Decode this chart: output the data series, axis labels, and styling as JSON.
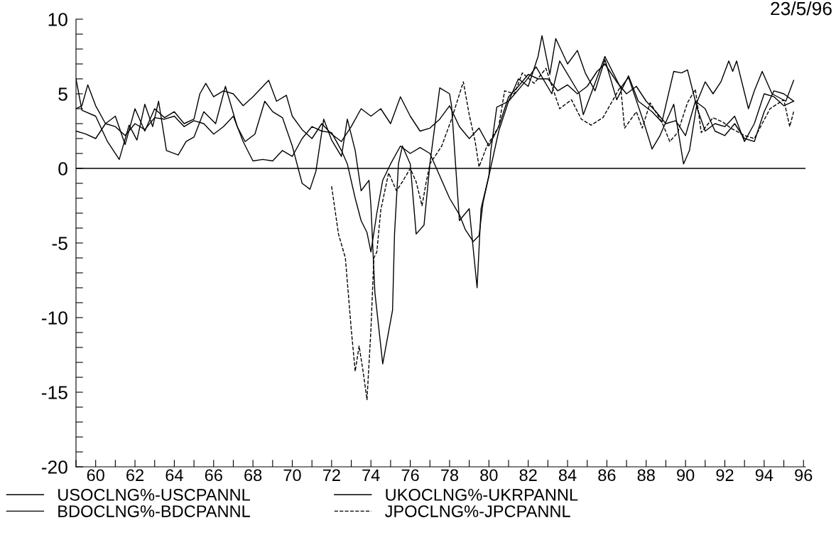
{
  "chart_data": {
    "type": "line",
    "xlim": [
      1959,
      1996.1
    ],
    "ylim": [
      -20,
      10
    ],
    "xticks": [
      {
        "value": 1959,
        "label": null
      },
      {
        "value": 1960,
        "label": "60"
      },
      {
        "value": 1961,
        "label": null
      },
      {
        "value": 1962,
        "label": "62"
      },
      {
        "value": 1963,
        "label": null
      },
      {
        "value": 1964,
        "label": "64"
      },
      {
        "value": 1965,
        "label": null
      },
      {
        "value": 1966,
        "label": "66"
      },
      {
        "value": 1967,
        "label": null
      },
      {
        "value": 1968,
        "label": "68"
      },
      {
        "value": 1969,
        "label": null
      },
      {
        "value": 1970,
        "label": "70"
      },
      {
        "value": 1971,
        "label": null
      },
      {
        "value": 1972,
        "label": "72"
      },
      {
        "value": 1973,
        "label": null
      },
      {
        "value": 1974,
        "label": "74"
      },
      {
        "value": 1975,
        "label": null
      },
      {
        "value": 1976,
        "label": "76"
      },
      {
        "value": 1977,
        "label": null
      },
      {
        "value": 1978,
        "label": "78"
      },
      {
        "value": 1979,
        "label": null
      },
      {
        "value": 1980,
        "label": "80"
      },
      {
        "value": 1981,
        "label": null
      },
      {
        "value": 1982,
        "label": "82"
      },
      {
        "value": 1983,
        "label": null
      },
      {
        "value": 1984,
        "label": "84"
      },
      {
        "value": 1985,
        "label": null
      },
      {
        "value": 1986,
        "label": "86"
      },
      {
        "value": 1987,
        "label": null
      },
      {
        "value": 1988,
        "label": "88"
      },
      {
        "value": 1989,
        "label": null
      },
      {
        "value": 1990,
        "label": "90"
      },
      {
        "value": 1991,
        "label": null
      },
      {
        "value": 1992,
        "label": "92"
      },
      {
        "value": 1993,
        "label": null
      },
      {
        "value": 1994,
        "label": "94"
      },
      {
        "value": 1995,
        "label": null
      },
      {
        "value": 1996,
        "label": "96"
      }
    ],
    "yticks": [
      -20,
      {
        "value": -19,
        "label": null
      },
      {
        "value": -18,
        "label": null
      },
      {
        "value": -17,
        "label": null
      },
      {
        "value": -16,
        "label": null
      },
      -15,
      {
        "value": -14,
        "label": null
      },
      {
        "value": -13,
        "label": null
      },
      {
        "value": -12,
        "label": null
      },
      {
        "value": -11,
        "label": null
      },
      -10,
      {
        "value": -9,
        "label": null
      },
      {
        "value": -8,
        "label": null
      },
      {
        "value": -7,
        "label": null
      },
      {
        "value": -6,
        "label": null
      },
      -5,
      {
        "value": -4,
        "label": null
      },
      {
        "value": -3,
        "label": null
      },
      {
        "value": -2,
        "label": null
      },
      {
        "value": -1,
        "label": null
      },
      0,
      {
        "value": 1,
        "label": null
      },
      {
        "value": 2,
        "label": null
      },
      {
        "value": 3,
        "label": null
      },
      {
        "value": 4,
        "label": null
      },
      5,
      {
        "value": 6,
        "label": null
      },
      {
        "value": 7,
        "label": null
      },
      {
        "value": 8,
        "label": null
      },
      {
        "value": 9,
        "label": null
      },
      10
    ],
    "grid": false,
    "legend": "bottom",
    "marker": "none",
    "ref_lines": [
      {
        "axis": "y",
        "value": 0,
        "color": "#000000"
      }
    ],
    "annotations": [
      "23/5/96"
    ],
    "series": [
      {
        "name": "USOCLNG%-USCPANNL",
        "color": "#000000",
        "line_style": "solid",
        "x": [
          1959,
          1959.5,
          1960,
          1960.5,
          1961,
          1961.5,
          1962,
          1962.5,
          1963,
          1963.5,
          1964,
          1964.5,
          1965,
          1965.5,
          1966,
          1966.5,
          1967,
          1967.5,
          1968,
          1968.5,
          1969,
          1969.5,
          1970,
          1970.5,
          1971,
          1971.5,
          1972,
          1972.5,
          1972.8,
          1973.2,
          1973.5,
          1973.8,
          1974.0,
          1974.3,
          1974.6,
          1975,
          1975.5,
          1976,
          1976.5,
          1977,
          1977.5,
          1978,
          1978.5,
          1978.8,
          1979.2,
          1979.5,
          1979.7,
          1980,
          1980.5,
          1981,
          1981.5,
          1982,
          1982.5,
          1982.7,
          1983.1,
          1983.4,
          1984,
          1984.5,
          1984.9,
          1985.4,
          1985.9,
          1986.5,
          1987.1,
          1987.6,
          1988.3,
          1988.8,
          1989.4,
          1989.8,
          1990.1,
          1990.6,
          1991,
          1991.5,
          1992,
          1992.5,
          1993,
          1993.5,
          1994,
          1994.5,
          1995,
          1995.5
        ],
        "values": [
          2.5,
          2.3,
          2.0,
          3.0,
          2.8,
          2.2,
          3.0,
          2.6,
          3.4,
          3.3,
          3.5,
          2.8,
          3.2,
          3.0,
          2.3,
          2.8,
          3.5,
          1.8,
          0.5,
          0.6,
          0.5,
          1.2,
          0.8,
          2.0,
          2.8,
          2.5,
          2.4,
          1.2,
          0.3,
          -2.0,
          -3.5,
          -4.3,
          -5.6,
          -3.0,
          -0.8,
          0.3,
          1.5,
          1.0,
          1.4,
          1.0,
          -0.5,
          -2.0,
          -3.1,
          -4.1,
          -4.9,
          -4.5,
          -2.3,
          -0.5,
          2.5,
          4.5,
          6.0,
          5.5,
          7.5,
          8.9,
          6.3,
          8.7,
          7.0,
          7.9,
          6.4,
          5.2,
          7.3,
          4.6,
          6.2,
          4.5,
          3.8,
          3.1,
          6.5,
          6.4,
          6.6,
          4.0,
          2.5,
          3.0,
          2.8,
          3.5,
          1.8,
          3.0,
          5.0,
          4.8,
          4.2,
          4.5
        ]
      },
      {
        "name": "BDOCLNG%-BDCPANNL",
        "color": "#000000",
        "line_style": "solid",
        "x": [
          1959,
          1959.3,
          1959.6,
          1960,
          1960.5,
          1961,
          1961.5,
          1962,
          1962.5,
          1963,
          1963.5,
          1964,
          1964.5,
          1965,
          1965.3,
          1965.6,
          1966,
          1966.5,
          1967,
          1967.5,
          1968,
          1968.8,
          1969.2,
          1969.7,
          1970,
          1970.5,
          1971,
          1971.5,
          1972,
          1972.5,
          1973,
          1973.5,
          1974,
          1974.5,
          1975,
          1975.5,
          1976,
          1976.5,
          1977,
          1977.5,
          1978,
          1978.5,
          1979,
          1979.5,
          1980,
          1980.5,
          1981,
          1981.5,
          1982,
          1982.5,
          1983,
          1983.5,
          1984,
          1984.5,
          1985,
          1985.5,
          1985.9,
          1986.5,
          1987,
          1987.5,
          1988,
          1988.5,
          1989,
          1989.5,
          1990,
          1990.5,
          1991,
          1991.5,
          1992,
          1992.5,
          1993,
          1993.5,
          1994,
          1994.5,
          1995,
          1995.5
        ],
        "values": [
          4.0,
          4.2,
          5.6,
          4.2,
          3.0,
          3.5,
          1.6,
          4.0,
          2.5,
          4.0,
          3.4,
          3.8,
          3.0,
          3.3,
          5.0,
          5.7,
          4.8,
          5.2,
          5.0,
          4.2,
          4.8,
          5.9,
          4.5,
          4.9,
          3.5,
          2.6,
          2.0,
          3.0,
          2.3,
          1.8,
          2.8,
          4.0,
          3.5,
          4.0,
          3.0,
          4.8,
          3.5,
          2.5,
          2.7,
          3.3,
          4.2,
          2.8,
          2.0,
          2.7,
          1.5,
          2.8,
          4.8,
          5.5,
          6.3,
          6.0,
          6.0,
          5.2,
          5.6,
          5.0,
          5.5,
          6.5,
          7.0,
          5.8,
          5.0,
          5.5,
          4.5,
          3.8,
          3.0,
          3.2,
          2.2,
          4.5,
          4.0,
          2.5,
          2.2,
          3.0,
          2.0,
          1.8,
          3.8,
          5.2,
          5.0,
          4.5
        ]
      },
      {
        "name": "UKOCLNG%-UKRPANNL",
        "color": "#000000",
        "line_style": "solid",
        "x": [
          1959,
          1959.3,
          1960,
          1960.6,
          1961.2,
          1961.7,
          1962.1,
          1962.5,
          1962.9,
          1963.2,
          1963.6,
          1964.2,
          1964.6,
          1965,
          1965.5,
          1966.1,
          1966.6,
          1967.2,
          1967.6,
          1968.1,
          1968.6,
          1969,
          1969.5,
          1970,
          1970.5,
          1970.9,
          1971.2,
          1971.6,
          1972,
          1972.5,
          1972.8,
          1973.2,
          1973.5,
          1973.9,
          1974.0,
          1974.2,
          1974.6,
          1975.1,
          1975.2,
          1975.4,
          1975.6,
          1976.0,
          1976.3,
          1976.7,
          1977.0,
          1977.5,
          1978.0,
          1978.1,
          1978.5,
          1979.0,
          1979.4,
          1979.6,
          1980.0,
          1980.1,
          1980.4,
          1981.0,
          1981.9,
          1982.4,
          1983.2,
          1983.6,
          1984.6,
          1984.8,
          1985.9,
          1986.7,
          1987.1,
          1987.9,
          1988.3,
          1988.7,
          1989.4,
          1989.9,
          1990.2,
          1990.6,
          1991,
          1991.4,
          1991.8,
          1992.2,
          1992.4,
          1992.6,
          1993.2,
          1993.5,
          1993.9,
          1994.4,
          1995.1,
          1995.5
        ],
        "values": [
          6.0,
          3.9,
          3.5,
          1.8,
          0.6,
          2.9,
          1.9,
          4.3,
          2.8,
          4.5,
          1.2,
          0.9,
          1.8,
          2.1,
          3.8,
          3.0,
          5.5,
          2.8,
          1.8,
          2.3,
          4.5,
          3.8,
          3.4,
          1.5,
          -1.0,
          -1.4,
          -0.2,
          3.3,
          1.9,
          0.8,
          3.3,
          1.2,
          -1.5,
          -0.8,
          -2.5,
          -8.3,
          -13.1,
          -9.5,
          -4.4,
          0.3,
          1.5,
          0.3,
          -4.4,
          -3.8,
          0.3,
          5.4,
          5.0,
          4.2,
          -3.5,
          -2.7,
          -8.0,
          -2.7,
          -0.5,
          1.2,
          4.1,
          4.5,
          5.9,
          6.8,
          5.0,
          7.2,
          5.0,
          3.6,
          7.5,
          5.4,
          6.1,
          3.0,
          1.3,
          2.2,
          4.3,
          0.3,
          1.2,
          4.5,
          5.8,
          5.0,
          5.8,
          7.2,
          6.5,
          7.2,
          4.0,
          5.2,
          6.5,
          5.0,
          4.5,
          5.9
        ]
      },
      {
        "name": "JPOCLNG%-JPCPANNL",
        "color": "#000000",
        "line_style": "dashed",
        "x": [
          1972.0,
          1972.35,
          1972.7,
          1973.0,
          1973.2,
          1973.4,
          1973.6,
          1973.8,
          1974.0,
          1974.15,
          1974.3,
          1974.5,
          1974.9,
          1975.3,
          1975.6,
          1976,
          1976.3,
          1976.6,
          1976.8,
          1977.0,
          1977.6,
          1978.1,
          1978.7,
          1979.0,
          1979.3,
          1979.5,
          1979.9,
          1980.5,
          1980.8,
          1981.3,
          1981.7,
          1982.3,
          1982.9,
          1983.6,
          1984.2,
          1984.7,
          1985.2,
          1985.8,
          1986.7,
          1986.9,
          1987.5,
          1987.8,
          1988.2,
          1988.8,
          1989.2,
          1989.6,
          1990.1,
          1990.5,
          1990.8,
          1991.4,
          1991.9,
          1992.3,
          1993.0,
          1993.5,
          1994.3,
          1995.0,
          1995.3,
          1995.5
        ],
        "values": [
          -1.2,
          -4.4,
          -6.0,
          -10.8,
          -13.6,
          -11.9,
          -13.6,
          -15.5,
          -10.8,
          -6.0,
          -5.6,
          -2.8,
          -0.3,
          -1.5,
          -0.9,
          0.0,
          -0.9,
          -2.5,
          -1.0,
          0.3,
          1.5,
          3.3,
          5.8,
          3.6,
          1.8,
          0.1,
          1.5,
          2.8,
          5.2,
          5.0,
          6.4,
          5.7,
          6.7,
          4.0,
          4.6,
          3.3,
          2.9,
          3.4,
          5.5,
          2.7,
          3.8,
          2.7,
          4.4,
          3.1,
          1.8,
          2.4,
          4.4,
          5.3,
          2.4,
          3.4,
          3.1,
          2.7,
          2.2,
          2.0,
          4.0,
          4.6,
          2.8,
          3.8
        ]
      }
    ]
  }
}
